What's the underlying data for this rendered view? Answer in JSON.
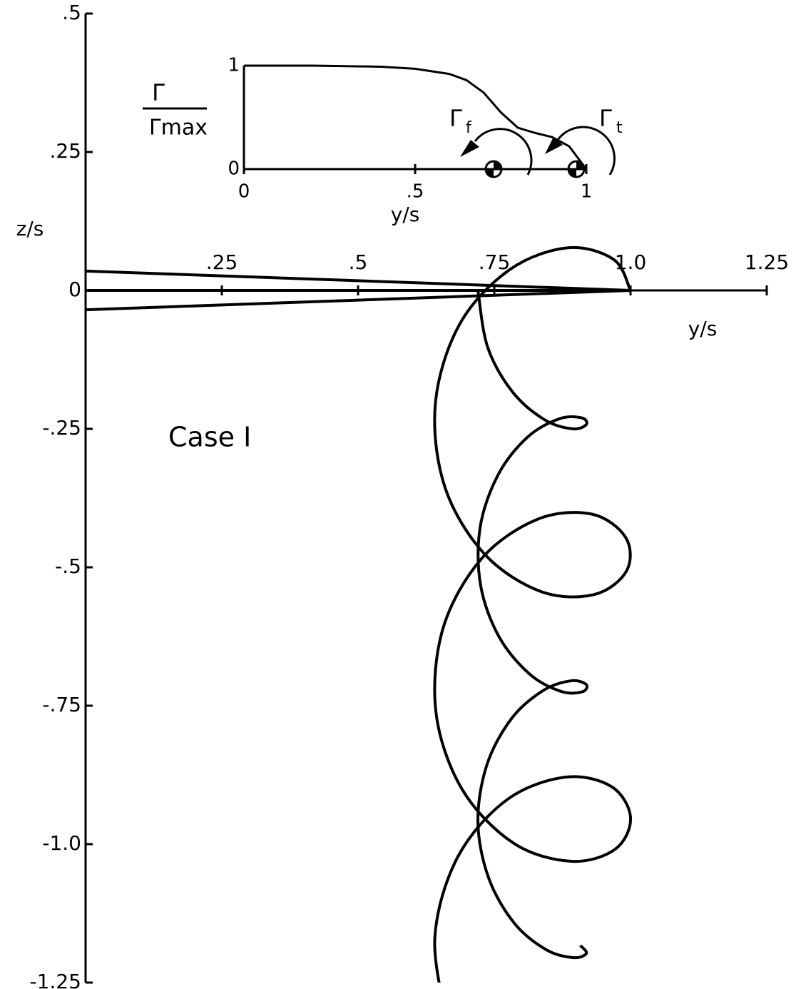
{
  "chart_data": [
    {
      "type": "line",
      "annotation": "Case I",
      "xlabel": "y/s",
      "ylabel": "z/s",
      "xlim": [
        0,
        1.25
      ],
      "ylim": [
        -1.25,
        0.5
      ],
      "xticks": [
        {
          "value": 0.25,
          "label": ".25"
        },
        {
          "value": 0.5,
          "label": ".5"
        },
        {
          "value": 0.75,
          "label": ".75"
        },
        {
          "value": 1.0,
          "label": "1.0"
        },
        {
          "value": 1.25,
          "label": "1.25"
        }
      ],
      "yticks": [
        {
          "value": 0.5,
          "label": ".5"
        },
        {
          "value": 0.25,
          "label": ".25"
        },
        0,
        {
          "value": -0.25,
          "label": "-.25"
        },
        {
          "value": -0.5,
          "label": "-.5"
        },
        {
          "value": -0.75,
          "label": "-.75"
        },
        {
          "value": -1.0,
          "label": "-1.0"
        },
        {
          "value": -1.25,
          "label": "-1.25"
        }
      ],
      "series": [
        {
          "color": "#000000",
          "x": [
            0,
            1.0
          ],
          "values": [
            0.035,
            0
          ]
        },
        {
          "color": "#000000",
          "x": [
            0,
            1.0
          ],
          "values": [
            0,
            0
          ]
        },
        {
          "color": "#000000",
          "x": [
            0,
            1.0
          ],
          "values": [
            -0.035,
            0
          ]
        },
        {
          "color": "#000000",
          "x": [
            1.0,
            0.969,
            0.885,
            0.779,
            0.687,
            0.642,
            0.659,
            0.732,
            0.836,
            0.934,
            0.993,
            0.991,
            0.929,
            0.83,
            0.727,
            0.656,
            0.643,
            0.691,
            0.785,
            0.891,
            0.972,
            1.0,
            0.965,
            0.88,
            0.773,
            0.683,
            0.641,
            0.662
          ],
          "values": [
            0,
            0.056,
            0.077,
            0.038,
            -0.06,
            -0.203,
            -0.354,
            -0.476,
            -0.544,
            -0.549,
            -0.506,
            -0.446,
            -0.404,
            -0.413,
            -0.484,
            -0.61,
            -0.762,
            -0.901,
            -0.998,
            -1.031,
            -1.009,
            -0.952,
            -0.896,
            -0.879,
            -0.92,
            -1.023,
            -1.167,
            -1.317
          ]
        },
        {
          "color": "#000000",
          "x": [
            0.72,
            0.738,
            0.784,
            0.843,
            0.894,
            0.919,
            0.91,
            0.869,
            0.811,
            0.757,
            0.724,
            0.725,
            0.759,
            0.815,
            0.872,
            0.911,
            0.919,
            0.891,
            0.839,
            0.781,
            0.736,
            0.72,
            0.74,
            0.787,
            0.846,
            0.896,
            0.919,
            0.908
          ],
          "values": [
            0,
            -0.103,
            -0.184,
            -0.234,
            -0.25,
            -0.242,
            -0.23,
            -0.232,
            -0.265,
            -0.333,
            -0.428,
            -0.533,
            -0.626,
            -0.693,
            -0.724,
            -0.725,
            -0.712,
            -0.705,
            -0.723,
            -0.774,
            -0.858,
            -0.961,
            -1.062,
            -1.143,
            -1.191,
            -1.205,
            -1.197,
            -1.183
          ]
        }
      ]
    },
    {
      "type": "line",
      "xlabel": "y/s",
      "ylabel_top": "Γ",
      "ylabel_bottom": "Γmax",
      "xlim": [
        0,
        1
      ],
      "ylim": [
        0,
        1
      ],
      "xticks": [
        0,
        {
          "value": 0.5,
          "label": ".5"
        },
        1
      ],
      "yticks": [
        0,
        1
      ],
      "annotations": [
        {
          "symbol": "Γ",
          "sub": "f"
        },
        {
          "symbol": "Γ",
          "sub": "t"
        }
      ],
      "series": [
        {
          "color": "#000000",
          "x": [
            0,
            0.2,
            0.4,
            0.5,
            0.6,
            0.65,
            0.7,
            0.75,
            0.8,
            0.85,
            0.9,
            0.95,
            1
          ],
          "values": [
            1,
            1,
            0.99,
            0.97,
            0.92,
            0.86,
            0.74,
            0.55,
            0.4,
            0.35,
            0.31,
            0.22,
            0
          ]
        }
      ]
    }
  ]
}
